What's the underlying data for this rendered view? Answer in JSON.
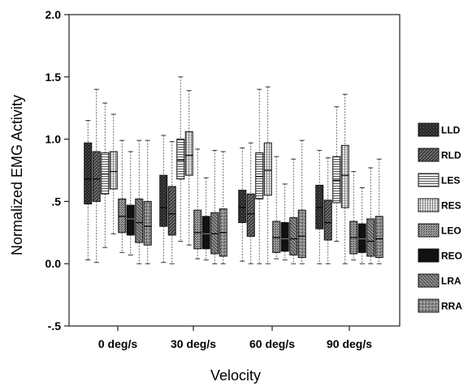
{
  "chart_data": {
    "type": "boxplot",
    "xlabel": "Velocity",
    "ylabel": "Normalized EMG Activity",
    "ylim": [
      -0.5,
      2.0
    ],
    "yticks": [
      {
        "value": 2.0,
        "label": "2.0"
      },
      {
        "value": 1.5,
        "label": "1.5"
      },
      {
        "value": 1.0,
        "label": "1.0"
      },
      {
        "value": 0.5,
        "label": ".5"
      },
      {
        "value": 0.0,
        "label": "0.0"
      },
      {
        "value": -0.5,
        "label": "-.5"
      }
    ],
    "categories": [
      "0 deg/s",
      "30 deg/s",
      "60 deg/s",
      "90 deg/s"
    ],
    "legend_position": "right",
    "series": [
      {
        "name": "LLD",
        "fill": "#2a2a2a",
        "pattern": "dark-speckle",
        "boxes": [
          {
            "min": 0.03,
            "q1": 0.48,
            "median": 0.68,
            "q3": 0.97,
            "max": 1.15
          },
          {
            "min": 0.01,
            "q1": 0.3,
            "median": 0.45,
            "q3": 0.71,
            "max": 1.03
          },
          {
            "min": 0.02,
            "q1": 0.33,
            "median": 0.45,
            "q3": 0.59,
            "max": 0.93
          },
          {
            "min": 0.0,
            "q1": 0.28,
            "median": 0.45,
            "q3": 0.63,
            "max": 0.91
          }
        ]
      },
      {
        "name": "RLD",
        "fill": "#555555",
        "pattern": "diagonal-dark",
        "boxes": [
          {
            "min": 0.01,
            "q1": 0.5,
            "median": 0.68,
            "q3": 0.9,
            "max": 1.4
          },
          {
            "min": 0.0,
            "q1": 0.23,
            "median": 0.4,
            "q3": 0.62,
            "max": 0.98
          },
          {
            "min": 0.0,
            "q1": 0.22,
            "median": 0.4,
            "q3": 0.56,
            "max": 0.97
          },
          {
            "min": 0.0,
            "q1": 0.19,
            "median": 0.33,
            "q3": 0.51,
            "max": 0.85
          }
        ]
      },
      {
        "name": "LES",
        "fill": "#dcdcdc",
        "pattern": "horizontal",
        "boxes": [
          {
            "min": 0.13,
            "q1": 0.56,
            "median": 0.72,
            "q3": 0.89,
            "max": 1.29
          },
          {
            "min": 0.18,
            "q1": 0.68,
            "median": 0.83,
            "q3": 1.0,
            "max": 1.5
          },
          {
            "min": 0.0,
            "q1": 0.52,
            "median": 0.7,
            "q3": 0.89,
            "max": 1.4
          },
          {
            "min": 0.18,
            "q1": 0.49,
            "median": 0.67,
            "q3": 0.86,
            "max": 1.26
          }
        ]
      },
      {
        "name": "RES",
        "fill": "#c8c8c8",
        "pattern": "grid",
        "boxes": [
          {
            "min": 0.24,
            "q1": 0.6,
            "median": 0.74,
            "q3": 0.9,
            "max": 1.2
          },
          {
            "min": 0.15,
            "q1": 0.71,
            "median": 0.87,
            "q3": 1.06,
            "max": 1.39
          },
          {
            "min": 0.0,
            "q1": 0.55,
            "median": 0.75,
            "q3": 0.97,
            "max": 1.42
          },
          {
            "min": 0.0,
            "q1": 0.45,
            "median": 0.71,
            "q3": 0.95,
            "max": 1.36
          }
        ]
      },
      {
        "name": "LEO",
        "fill": "#7a7a7a",
        "pattern": "dots",
        "boxes": [
          {
            "min": 0.09,
            "q1": 0.25,
            "median": 0.38,
            "q3": 0.52,
            "max": 0.99
          },
          {
            "min": 0.04,
            "q1": 0.12,
            "median": 0.25,
            "q3": 0.43,
            "max": 0.92
          },
          {
            "min": 0.04,
            "q1": 0.09,
            "median": 0.21,
            "q3": 0.34,
            "max": 0.86
          },
          {
            "min": 0.03,
            "q1": 0.08,
            "median": 0.21,
            "q3": 0.34,
            "max": 0.74
          }
        ]
      },
      {
        "name": "REO",
        "fill": "#111111",
        "pattern": "solid",
        "boxes": [
          {
            "min": 0.07,
            "q1": 0.23,
            "median": 0.36,
            "q3": 0.47,
            "max": 0.9
          },
          {
            "min": 0.03,
            "q1": 0.12,
            "median": 0.24,
            "q3": 0.38,
            "max": 0.69
          },
          {
            "min": 0.03,
            "q1": 0.1,
            "median": 0.2,
            "q3": 0.33,
            "max": 0.64
          },
          {
            "min": 0.0,
            "q1": 0.09,
            "median": 0.2,
            "q3": 0.32,
            "max": 0.61
          }
        ]
      },
      {
        "name": "LRA",
        "fill": "#5e5e5e",
        "pattern": "diagonal-mid",
        "boxes": [
          {
            "min": 0.0,
            "q1": 0.17,
            "median": 0.33,
            "q3": 0.52,
            "max": 0.99
          },
          {
            "min": 0.0,
            "q1": 0.08,
            "median": 0.24,
            "q3": 0.41,
            "max": 0.91
          },
          {
            "min": 0.0,
            "q1": 0.07,
            "median": 0.2,
            "q3": 0.37,
            "max": 0.84
          },
          {
            "min": 0.0,
            "q1": 0.06,
            "median": 0.18,
            "q3": 0.36,
            "max": 0.77
          }
        ]
      },
      {
        "name": "RRA",
        "fill": "#8a8a8a",
        "pattern": "speckle-light",
        "boxes": [
          {
            "min": 0.0,
            "q1": 0.15,
            "median": 0.3,
            "q3": 0.5,
            "max": 0.99
          },
          {
            "min": 0.0,
            "q1": 0.06,
            "median": 0.25,
            "q3": 0.44,
            "max": 0.9
          },
          {
            "min": 0.0,
            "q1": 0.05,
            "median": 0.22,
            "q3": 0.43,
            "max": 0.99
          },
          {
            "min": 0.0,
            "q1": 0.05,
            "median": 0.2,
            "q3": 0.38,
            "max": 0.84
          }
        ]
      }
    ]
  }
}
